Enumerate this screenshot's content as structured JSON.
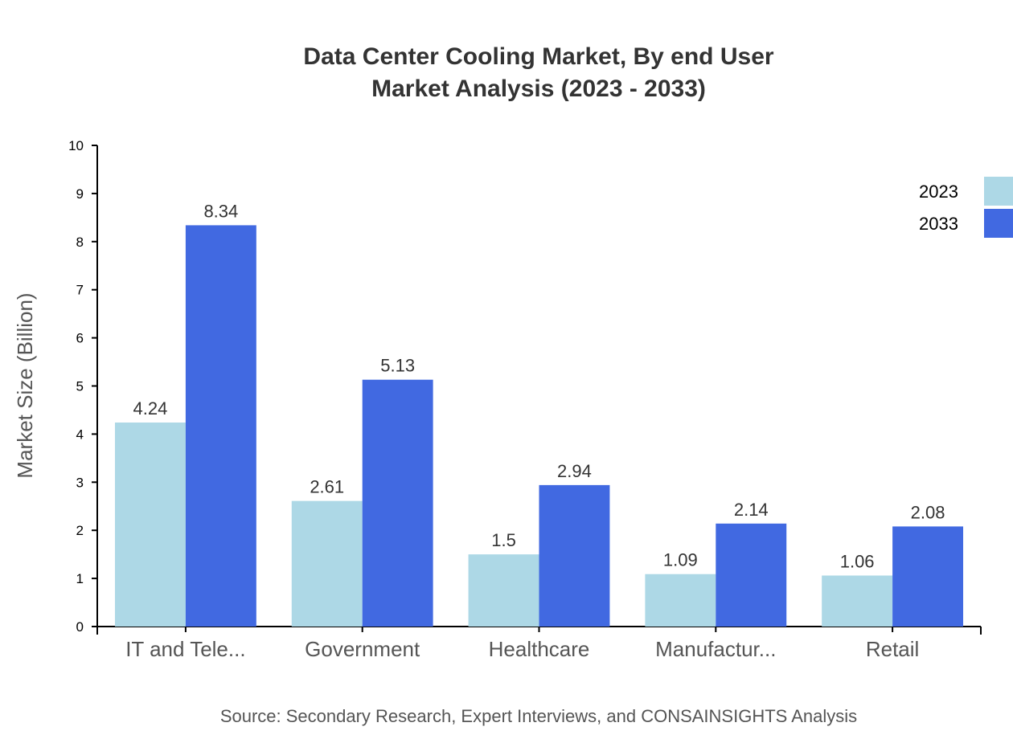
{
  "chart_data": {
    "type": "bar",
    "title": "Data Center Cooling Market, By end User",
    "subtitle": "Market Analysis (2023 - 2033)",
    "xlabel": "",
    "ylabel": "Market Size (Billion)",
    "ylim": [
      0,
      10
    ],
    "yticks": [
      "0",
      "1",
      "2",
      "3",
      "4",
      "5",
      "6",
      "7",
      "8",
      "9",
      "10"
    ],
    "categories": [
      "IT and Tele...",
      "Government",
      "Healthcare",
      "Manufactur...",
      "Retail"
    ],
    "series": [
      {
        "name": "2023",
        "color": "#add8e6",
        "values": [
          4.24,
          2.61,
          1.5,
          1.09,
          1.06
        ],
        "labels": [
          "4.24",
          "2.61",
          "1.5",
          "1.09",
          "1.06"
        ]
      },
      {
        "name": "2033",
        "color": "#4169e1",
        "values": [
          8.34,
          5.13,
          2.94,
          2.14,
          2.08
        ],
        "labels": [
          "8.34",
          "5.13",
          "2.94",
          "2.14",
          "2.08"
        ]
      }
    ],
    "grid": false,
    "legend": "top-right",
    "source": "Source: Secondary Research, Expert Interviews, and CONSAINSIGHTS Analysis"
  }
}
